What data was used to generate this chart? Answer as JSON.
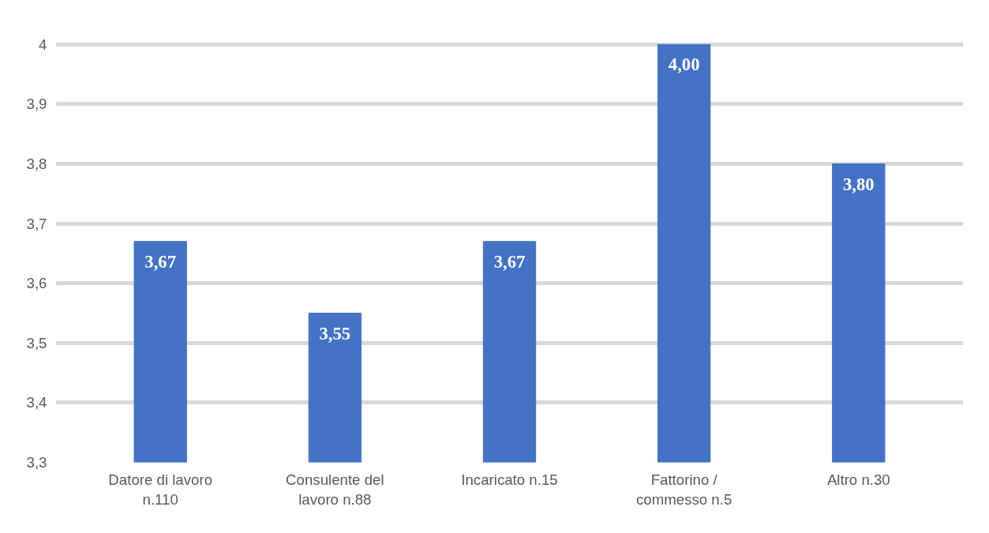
{
  "chart_data": {
    "type": "bar",
    "categories": [
      "Datore di lavoro n.110",
      "Consulente del lavoro n.88",
      "Incaricato n.15",
      "Fattorino / commesso n.5",
      "Altro n.30"
    ],
    "values": [
      3.67,
      3.55,
      3.67,
      4.0,
      3.8
    ],
    "value_labels": [
      "3,67",
      "3,55",
      "3,67",
      "4,00",
      "3,80"
    ],
    "color": "#4472c4",
    "ylim": [
      3.3,
      4.0
    ],
    "yticks": [
      {
        "value": 3.3,
        "label": "3,3"
      },
      {
        "value": 3.4,
        "label": "3,4"
      },
      {
        "value": 3.5,
        "label": "3,5"
      },
      {
        "value": 3.6,
        "label": "3,6"
      },
      {
        "value": 3.7,
        "label": "3,7"
      },
      {
        "value": 3.8,
        "label": "3,8"
      },
      {
        "value": 3.9,
        "label": "3,9"
      },
      {
        "value": 4,
        "label": "4"
      }
    ],
    "grid": "y"
  }
}
